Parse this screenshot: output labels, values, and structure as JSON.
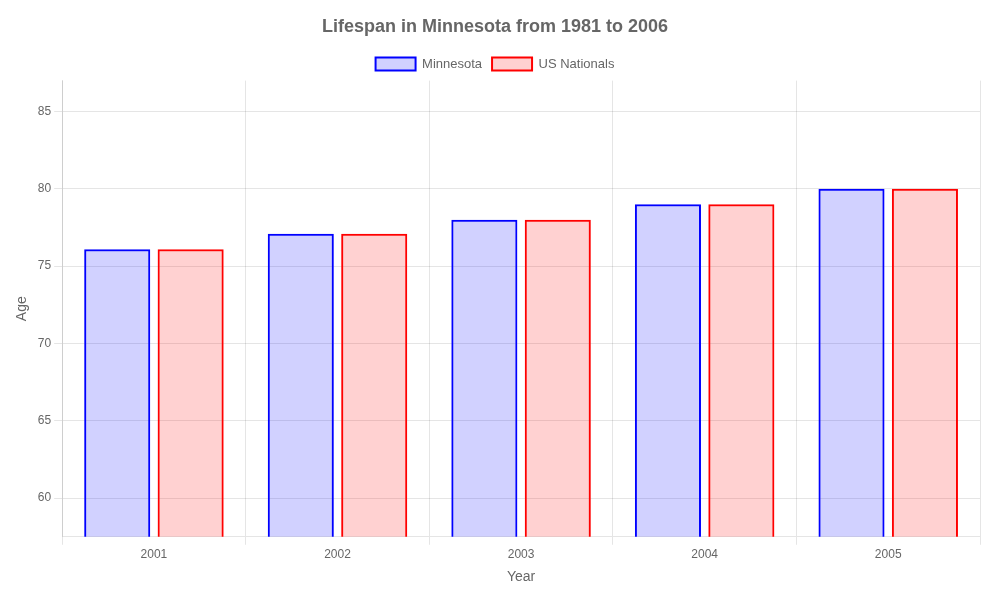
{
  "chart_data": {
    "type": "bar",
    "title": "Lifespan in Minnesota from 1981 to 2006",
    "xlabel": "Year",
    "ylabel": "Age",
    "categories": [
      "2001",
      "2002",
      "2003",
      "2004",
      "2005"
    ],
    "series": [
      {
        "name": "Minnesota",
        "color": "#0000ff",
        "values": [
          76.1,
          77.1,
          78.0,
          79.0,
          80.0
        ]
      },
      {
        "name": "US Nationals",
        "color": "#ff0000",
        "values": [
          76.1,
          77.1,
          78.0,
          79.0,
          80.0
        ]
      }
    ],
    "ylim": [
      57.5,
      87
    ],
    "yticks": [
      60,
      65,
      70,
      75,
      80,
      85
    ],
    "grid": true,
    "legend": "top"
  }
}
